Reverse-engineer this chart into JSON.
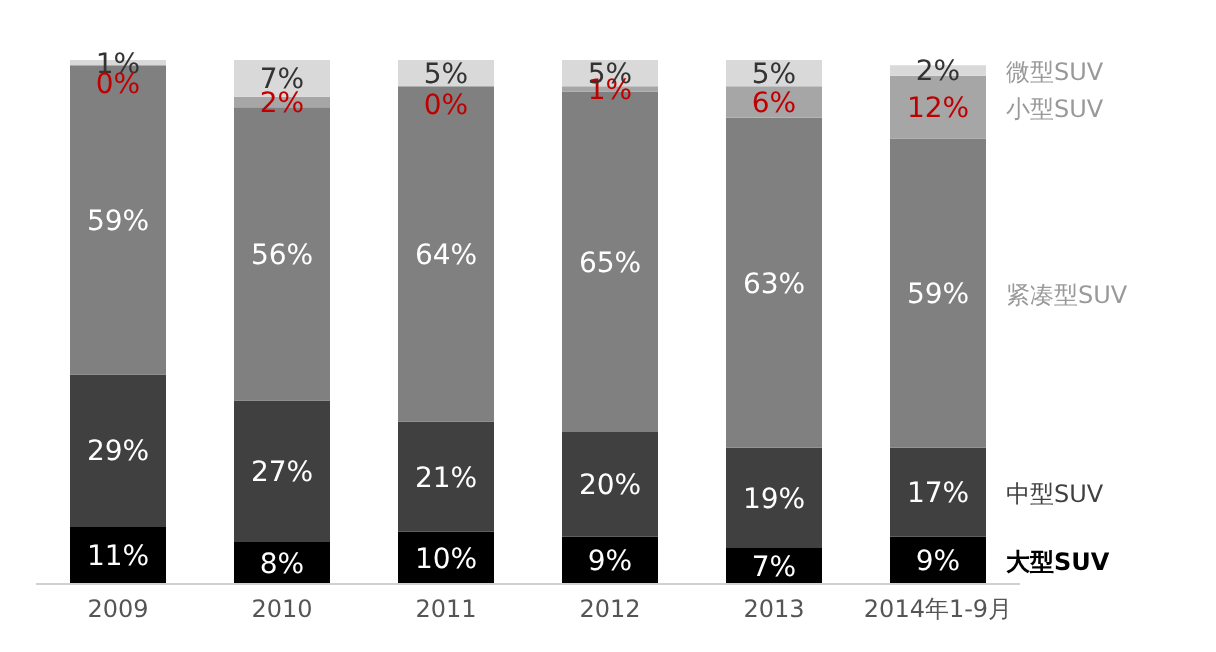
{
  "chart_data": {
    "type": "bar",
    "stacked": true,
    "categories": [
      "2009",
      "2010",
      "2011",
      "2012",
      "2013",
      "2014年1-9月"
    ],
    "ylim": [
      0,
      100
    ],
    "tick_labels": "x",
    "grid": false,
    "legend": false,
    "series": [
      {
        "name": "大型SUV",
        "color": "#000000",
        "values": [
          11,
          8,
          10,
          9,
          7,
          9
        ],
        "value_labels": [
          "11%",
          "8%",
          "10%",
          "9%",
          "7%",
          "9%"
        ]
      },
      {
        "name": "中型SUV",
        "color": "#404040",
        "values": [
          29,
          27,
          21,
          20,
          19,
          17
        ],
        "value_labels": [
          "29%",
          "27%",
          "21%",
          "20%",
          "19%",
          "17%"
        ]
      },
      {
        "name": "紧凑型SUV",
        "color": "#808080",
        "values": [
          59,
          56,
          64,
          65,
          63,
          59
        ],
        "value_labels": [
          "59%",
          "56%",
          "64%",
          "65%",
          "63%",
          "59%"
        ]
      },
      {
        "name": "小型SUV",
        "color": "#a6a6a6",
        "values": [
          0,
          2,
          0,
          1,
          6,
          12
        ],
        "value_labels": [
          "0%",
          "2%",
          "0%",
          "1%",
          "6%",
          "12%"
        ]
      },
      {
        "name": "微型SUV",
        "color": "#d9d9d9",
        "values": [
          1,
          7,
          5,
          5,
          5,
          2
        ],
        "value_labels": [
          "1%",
          "7%",
          "5%",
          "5%",
          "5%",
          "2%"
        ]
      }
    ]
  }
}
